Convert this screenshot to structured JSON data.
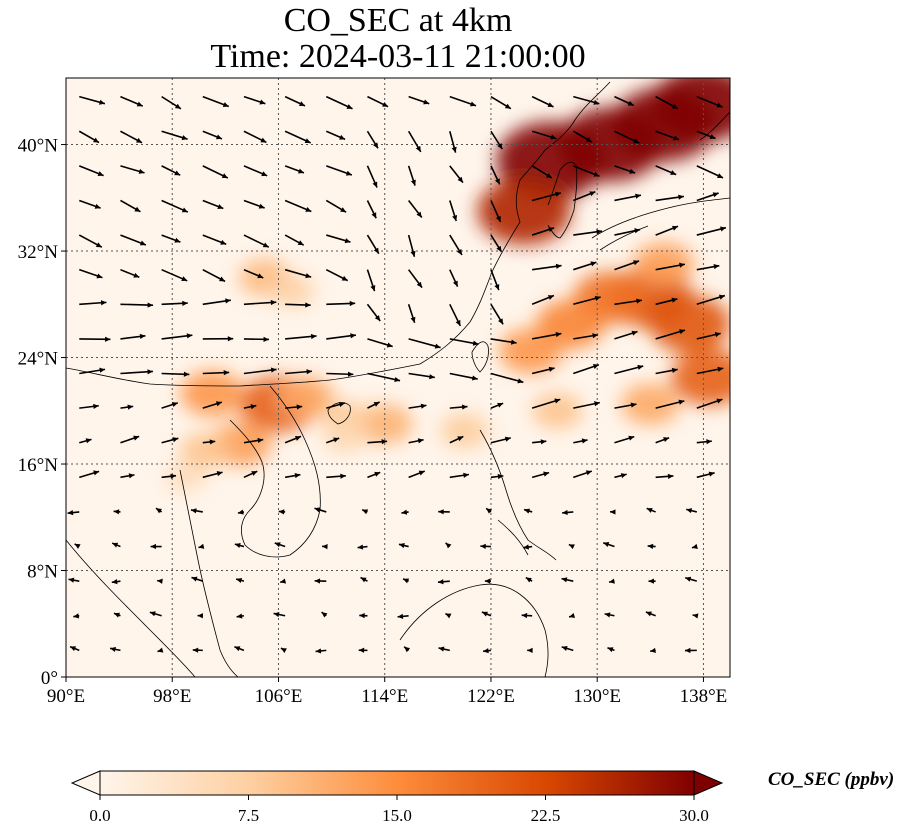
{
  "title": {
    "line1": "CO_SEC at 4km",
    "line2": "Time: 2024-03-11 21:00:00"
  },
  "chart_data": {
    "type": "heatmap",
    "variable": "CO_SEC",
    "level": "4km",
    "time": "2024-03-11 21:00:00",
    "xlim": [
      90,
      140
    ],
    "ylim": [
      0,
      45
    ],
    "grid": true,
    "x_ticks": [
      {
        "value": 90,
        "label": "90°E"
      },
      {
        "value": 98,
        "label": "98°E"
      },
      {
        "value": 106,
        "label": "106°E"
      },
      {
        "value": 114,
        "label": "114°E"
      },
      {
        "value": 122,
        "label": "122°E"
      },
      {
        "value": 130,
        "label": "130°E"
      },
      {
        "value": 138,
        "label": "138°E"
      }
    ],
    "y_ticks": [
      {
        "value": 0,
        "label": "0°"
      },
      {
        "value": 8,
        "label": "8°N"
      },
      {
        "value": 16,
        "label": "16°N"
      },
      {
        "value": 24,
        "label": "24°N"
      },
      {
        "value": 32,
        "label": "32°N"
      },
      {
        "value": 40,
        "label": "40°N"
      }
    ],
    "colorbar": {
      "label": "CO_SEC (ppbv)",
      "min": 0,
      "max": 30,
      "extend": "both",
      "ticks": [
        {
          "value": 0,
          "label": "0.0"
        },
        {
          "value": 7.5,
          "label": "7.5"
        },
        {
          "value": 15,
          "label": "15.0"
        },
        {
          "value": 22.5,
          "label": "22.5"
        },
        {
          "value": 30,
          "label": "30.0"
        }
      ],
      "colors": [
        "#fff5eb",
        "#fdd0a2",
        "#fd8d3c",
        "#d94801",
        "#7f0000"
      ]
    },
    "plumes": [
      {
        "lon": 126.5,
        "lat": 38.8,
        "value": 32
      },
      {
        "lon": 131.0,
        "lat": 40.0,
        "value": 30
      },
      {
        "lon": 135.0,
        "lat": 41.5,
        "value": 30
      },
      {
        "lon": 138.0,
        "lat": 43.0,
        "value": 30
      },
      {
        "lon": 124.5,
        "lat": 35.0,
        "value": 26
      },
      {
        "lon": 134.0,
        "lat": 28.5,
        "value": 22
      },
      {
        "lon": 137.0,
        "lat": 26.5,
        "value": 21
      },
      {
        "lon": 138.5,
        "lat": 22.5,
        "value": 20
      },
      {
        "lon": 131.0,
        "lat": 28.5,
        "value": 18
      },
      {
        "lon": 128.0,
        "lat": 26.5,
        "value": 16
      },
      {
        "lon": 125.0,
        "lat": 24.5,
        "value": 14
      },
      {
        "lon": 135.0,
        "lat": 31.0,
        "value": 13
      },
      {
        "lon": 134.0,
        "lat": 20.5,
        "value": 12
      },
      {
        "lon": 127.0,
        "lat": 20.0,
        "value": 9
      },
      {
        "lon": 120.0,
        "lat": 18.5,
        "value": 8
      },
      {
        "lon": 106.0,
        "lat": 20.5,
        "value": 20
      },
      {
        "lon": 108.0,
        "lat": 21.0,
        "value": 12
      },
      {
        "lon": 101.0,
        "lat": 21.3,
        "value": 14
      },
      {
        "lon": 103.2,
        "lat": 17.5,
        "value": 13
      },
      {
        "lon": 100.5,
        "lat": 17.0,
        "value": 9
      },
      {
        "lon": 114.0,
        "lat": 19.0,
        "value": 11
      },
      {
        "lon": 111.0,
        "lat": 19.5,
        "value": 8
      },
      {
        "lon": 105.0,
        "lat": 30.0,
        "value": 10
      },
      {
        "lon": 107.0,
        "lat": 29.0,
        "value": 7
      },
      {
        "lon": 111.0,
        "lat": 18.0,
        "value": 6
      },
      {
        "lon": 99.0,
        "lat": 15.0,
        "value": 5
      }
    ],
    "wind_vectors": "quiver field (unlabeled), predominantly westerly/southeasterly flow"
  }
}
